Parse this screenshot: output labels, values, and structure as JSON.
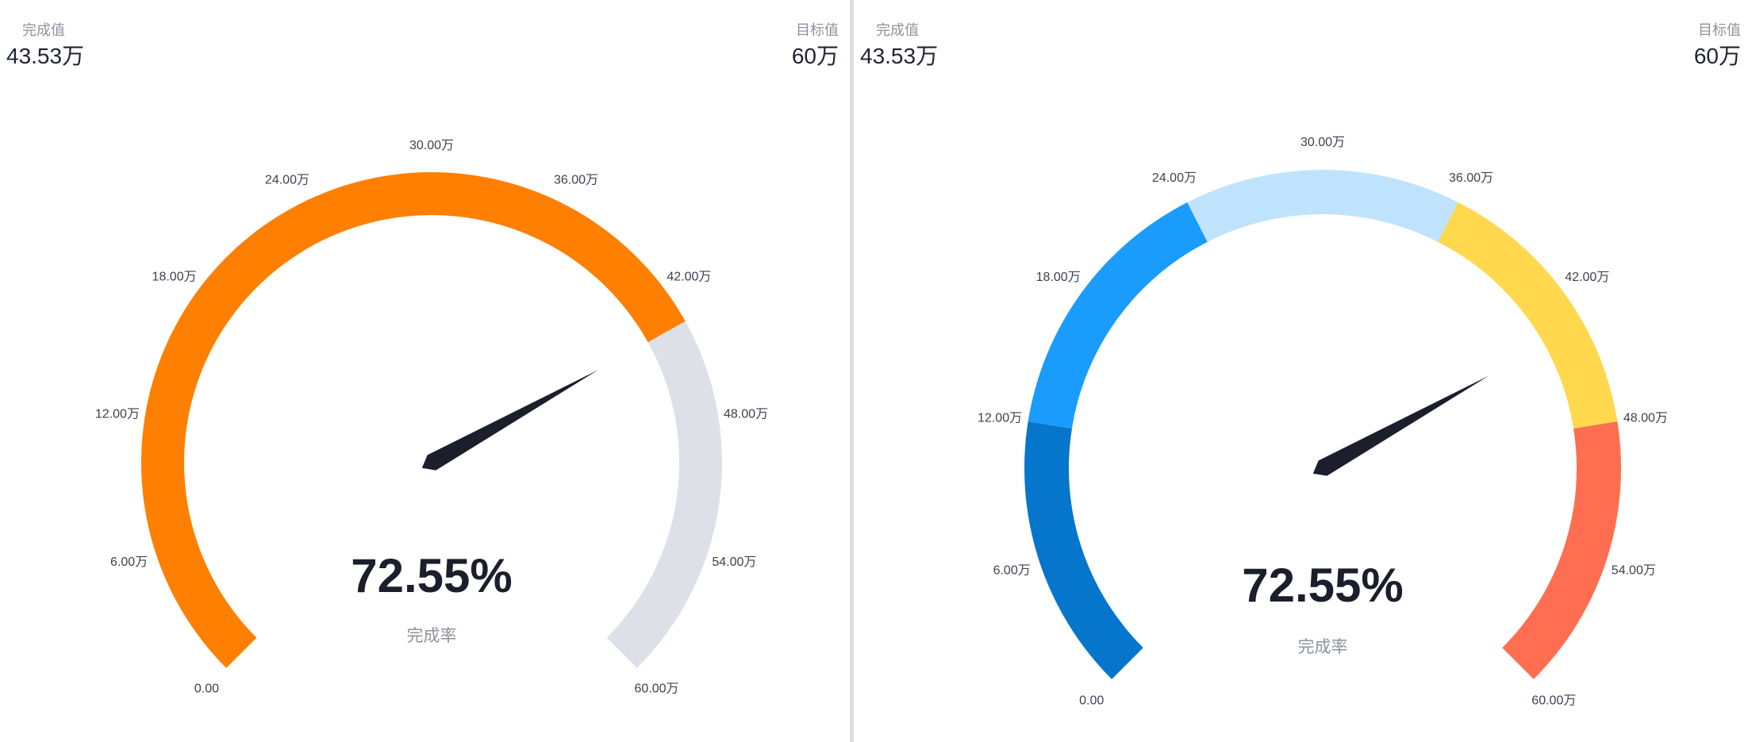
{
  "panels": [
    {
      "completed": {
        "label": "完成值",
        "value": "43.53万"
      },
      "target": {
        "label": "目标值",
        "value": "60万"
      },
      "percent_text": "72.55%",
      "percent_label": "完成率"
    },
    {
      "completed": {
        "label": "完成值",
        "value": "43.53万"
      },
      "target": {
        "label": "目标值",
        "value": "60万"
      },
      "percent_text": "72.55%",
      "percent_label": "完成率"
    }
  ],
  "chart_data": [
    {
      "type": "gauge",
      "min": 0,
      "max": 60,
      "value": 43.53,
      "percent": 72.55,
      "tick_values": [
        0,
        6,
        12,
        18,
        24,
        30,
        36,
        42,
        48,
        54,
        60
      ],
      "tick_labels": [
        "0.00",
        "6.00万",
        "12.00万",
        "18.00万",
        "24.00万",
        "30.00万",
        "36.00万",
        "42.00万",
        "48.00万",
        "54.00万",
        "60.00万"
      ],
      "bands": [
        {
          "from": 0,
          "to": 43.53,
          "color": "#ff7f00"
        },
        {
          "from": 43.53,
          "to": 60,
          "color": "#dde0e6"
        }
      ],
      "needle_color": "#1b1f2b"
    },
    {
      "type": "gauge",
      "min": 0,
      "max": 60,
      "value": 43.53,
      "percent": 72.55,
      "tick_values": [
        0,
        6,
        12,
        18,
        24,
        30,
        36,
        42,
        48,
        54,
        60
      ],
      "tick_labels": [
        "0.00",
        "6.00万",
        "12.00万",
        "18.00万",
        "24.00万",
        "30.00万",
        "36.00万",
        "42.00万",
        "48.00万",
        "54.00万",
        "60.00万"
      ],
      "bands": [
        {
          "from": 0,
          "to": 12,
          "color": "#0676cc"
        },
        {
          "from": 12,
          "to": 24,
          "color": "#1a9cfc"
        },
        {
          "from": 24,
          "to": 36,
          "color": "#bfe3fd"
        },
        {
          "from": 36,
          "to": 48,
          "color": "#ffd84d"
        },
        {
          "from": 48,
          "to": 60,
          "color": "#ff6e50"
        }
      ],
      "needle_color": "#1b1f2b"
    }
  ]
}
